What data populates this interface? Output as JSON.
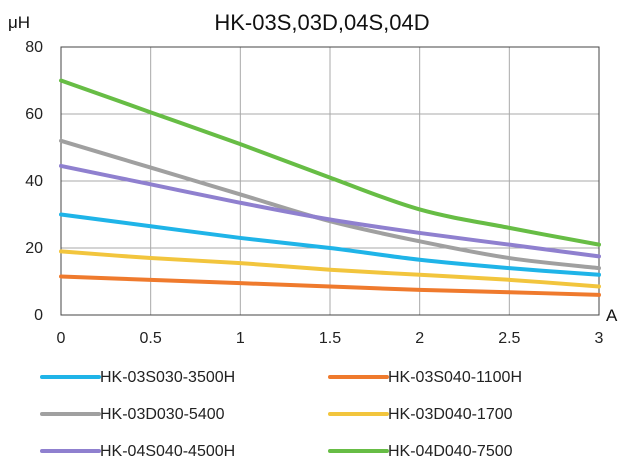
{
  "chart_data": {
    "type": "line",
    "title": "HK-03S,03D,04S,04D",
    "ylabel": "μH",
    "xlabel": "A",
    "x": [
      0,
      0.5,
      1,
      1.5,
      2,
      2.5,
      3
    ],
    "x_tick_labels": [
      "0",
      "0.5",
      "1",
      "1.5",
      "2",
      "2.5",
      "3"
    ],
    "y_ticks": [
      0,
      20,
      40,
      60,
      80
    ],
    "y_tick_labels": [
      "0",
      "20",
      "40",
      "60",
      "80"
    ],
    "xlim": [
      0,
      3
    ],
    "ylim": [
      0,
      80
    ],
    "grid": true,
    "legend_position": "bottom",
    "series": [
      {
        "name": "HK-03S030-3500H",
        "color": "#1fb4e8",
        "values": [
          30,
          26.5,
          23,
          20,
          16.5,
          14,
          12
        ]
      },
      {
        "name": "HK-03S040-1100H",
        "color": "#ef7a2d",
        "values": [
          11.5,
          10.5,
          9.5,
          8.5,
          7.5,
          6.8,
          6
        ]
      },
      {
        "name": "HK-03D030-5400",
        "color": "#a0a0a0",
        "values": [
          52,
          44,
          36,
          28,
          22,
          17,
          14
        ]
      },
      {
        "name": "HK-03D040-1700",
        "color": "#f2c53d",
        "values": [
          19,
          17,
          15.5,
          13.5,
          12,
          10.5,
          8.5
        ]
      },
      {
        "name": "HK-04S040-4500H",
        "color": "#8f80cf",
        "values": [
          44.5,
          39,
          33.5,
          28.5,
          24.5,
          21,
          17.5
        ]
      },
      {
        "name": "HK-04D040-7500",
        "color": "#67bd45",
        "values": [
          70,
          60.5,
          51,
          41,
          31.5,
          26,
          21
        ]
      }
    ]
  }
}
